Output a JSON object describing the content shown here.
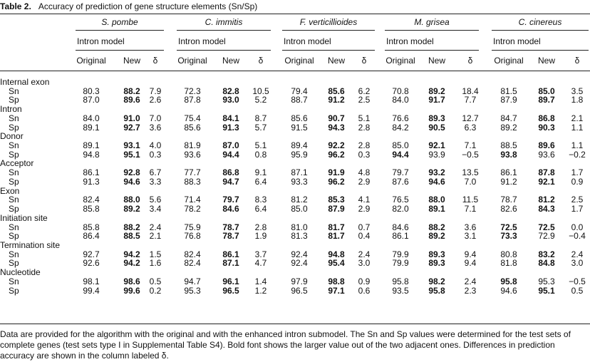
{
  "table": {
    "label": "Table 2.",
    "title": "Accuracy of prediction of gene structure elements (Sn/Sp)",
    "species": [
      "S. pombe",
      "C. immitis",
      "F. verticillioides",
      "M. grisea",
      "C. cinereus"
    ],
    "submodel": [
      "Intron model",
      "Intron model",
      "Intron model",
      "Intron model",
      "Intron model"
    ],
    "columns": [
      "Original",
      "New",
      "δ",
      "Original",
      "New",
      "δ",
      "Original",
      "New",
      "δ",
      "Original",
      "New",
      "δ",
      "Original",
      "New",
      "δ"
    ],
    "groups": [
      {
        "label": "Internal exon",
        "rows": [
          {
            "label": "Sn",
            "cells": [
              "80.3",
              "88.2",
              "7.9",
              "72.3",
              "82.8",
              "10.5",
              "79.4",
              "85.6",
              "6.2",
              "70.8",
              "89.2",
              "18.4",
              "81.5",
              "85.0",
              "3.5"
            ],
            "bold": [
              1,
              4,
              7,
              10,
              13
            ]
          },
          {
            "label": "Sp",
            "cells": [
              "87.0",
              "89.6",
              "2.6",
              "87.8",
              "93.0",
              "5.2",
              "88.7",
              "91.2",
              "2.5",
              "84.0",
              "91.7",
              "7.7",
              "87.9",
              "89.7",
              "1.8"
            ],
            "bold": [
              1,
              4,
              7,
              10,
              13
            ]
          }
        ]
      },
      {
        "label": "Intron",
        "rows": [
          {
            "label": "Sn",
            "cells": [
              "84.0",
              "91.0",
              "7.0",
              "75.4",
              "84.1",
              "8.7",
              "85.6",
              "90.7",
              "5.1",
              "76.6",
              "89.3",
              "12.7",
              "84.7",
              "86.8",
              "2.1"
            ],
            "bold": [
              1,
              4,
              7,
              10,
              13
            ]
          },
          {
            "label": "Sp",
            "cells": [
              "89.1",
              "92.7",
              "3.6",
              "85.6",
              "91.3",
              "5.7",
              "91.5",
              "94.3",
              "2.8",
              "84.2",
              "90.5",
              "6.3",
              "89.2",
              "90.3",
              "1.1"
            ],
            "bold": [
              1,
              4,
              7,
              10,
              13
            ]
          }
        ]
      },
      {
        "label": "Donor",
        "rows": [
          {
            "label": "Sn",
            "cells": [
              "89.1",
              "93.1",
              "4.0",
              "81.9",
              "87.0",
              "5.1",
              "89.4",
              "92.2",
              "2.8",
              "85.0",
              "92.1",
              "7.1",
              "88.5",
              "89.6",
              "1.1"
            ],
            "bold": [
              1,
              4,
              7,
              10,
              13
            ]
          },
          {
            "label": "Sp",
            "cells": [
              "94.8",
              "95.1",
              "0.3",
              "93.6",
              "94.4",
              "0.8",
              "95.9",
              "96.2",
              "0.3",
              "94.4",
              "93.9",
              "−0.5",
              "93.8",
              "93.6",
              "−0.2"
            ],
            "bold": [
              1,
              4,
              7,
              9,
              12
            ]
          }
        ]
      },
      {
        "label": "Acceptor",
        "rows": [
          {
            "label": "Sn",
            "cells": [
              "86.1",
              "92.8",
              "6.7",
              "77.7",
              "86.8",
              "9.1",
              "87.1",
              "91.9",
              "4.8",
              "79.7",
              "93.2",
              "13.5",
              "86.1",
              "87.8",
              "1.7"
            ],
            "bold": [
              1,
              4,
              7,
              10,
              13
            ]
          },
          {
            "label": "Sp",
            "cells": [
              "91.3",
              "94.6",
              "3.3",
              "88.3",
              "94.7",
              "6.4",
              "93.3",
              "96.2",
              "2.9",
              "87.6",
              "94.6",
              "7.0",
              "91.2",
              "92.1",
              "0.9"
            ],
            "bold": [
              1,
              4,
              7,
              10,
              13
            ]
          }
        ]
      },
      {
        "label": "Exon",
        "rows": [
          {
            "label": "Sn",
            "cells": [
              "82.4",
              "88.0",
              "5.6",
              "71.4",
              "79.7",
              "8.3",
              "81.2",
              "85.3",
              "4.1",
              "76.5",
              "88.0",
              "11.5",
              "78.7",
              "81.2",
              "2.5"
            ],
            "bold": [
              1,
              4,
              7,
              10,
              13
            ]
          },
          {
            "label": "Sp",
            "cells": [
              "85.8",
              "89.2",
              "3.4",
              "78.2",
              "84.6",
              "6.4",
              "85.0",
              "87.9",
              "2.9",
              "82.0",
              "89.1",
              "7.1",
              "82.6",
              "84.3",
              "1.7"
            ],
            "bold": [
              1,
              4,
              7,
              10,
              13
            ]
          }
        ]
      },
      {
        "label": "Initiation site",
        "rows": [
          {
            "label": "Sn",
            "cells": [
              "85.8",
              "88.2",
              "2.4",
              "75.9",
              "78.7",
              "2.8",
              "81.0",
              "81.7",
              "0.7",
              "84.6",
              "88.2",
              "3.6",
              "72.5",
              "72.5",
              "0.0"
            ],
            "bold": [
              1,
              4,
              7,
              10,
              12,
              13
            ]
          },
          {
            "label": "Sp",
            "cells": [
              "86.4",
              "88.5",
              "2.1",
              "76.8",
              "78.7",
              "1.9",
              "81.3",
              "81.7",
              "0.4",
              "86.1",
              "89.2",
              "3.1",
              "73.3",
              "72.9",
              "−0.4"
            ],
            "bold": [
              1,
              4,
              7,
              10,
              12
            ]
          }
        ]
      },
      {
        "label": "Termination site",
        "rows": [
          {
            "label": "Sn",
            "cells": [
              "92.7",
              "94.2",
              "1.5",
              "82.4",
              "86.1",
              "3.7",
              "92.4",
              "94.8",
              "2.4",
              "79.9",
              "89.3",
              "9.4",
              "80.8",
              "83.2",
              "2.4"
            ],
            "bold": [
              1,
              4,
              7,
              10,
              13
            ]
          },
          {
            "label": "Sp",
            "cells": [
              "92.6",
              "94.2",
              "1.6",
              "82.4",
              "87.1",
              "4.7",
              "92.4",
              "95.4",
              "3.0",
              "79.9",
              "89.3",
              "9.4",
              "81.8",
              "84.8",
              "3.0"
            ],
            "bold": [
              1,
              4,
              7,
              10,
              13
            ]
          }
        ]
      },
      {
        "label": "Nucleotide",
        "rows": [
          {
            "label": "Sn",
            "cells": [
              "98.1",
              "98.6",
              "0.5",
              "94.7",
              "96.1",
              "1.4",
              "97.9",
              "98.8",
              "0.9",
              "95.8",
              "98.2",
              "2.4",
              "95.8",
              "95.3",
              "−0.5"
            ],
            "bold": [
              1,
              4,
              7,
              10,
              12
            ]
          },
          {
            "label": "Sp",
            "cells": [
              "99.4",
              "99.6",
              "0.2",
              "95.3",
              "96.5",
              "1.2",
              "96.5",
              "97.1",
              "0.6",
              "93.5",
              "95.8",
              "2.3",
              "94.6",
              "95.1",
              "0.5"
            ],
            "bold": [
              1,
              4,
              7,
              10,
              13
            ]
          }
        ]
      }
    ],
    "footnote": "Data are provided for the algorithm with the original and with the enhanced intron submodel. The Sn and Sp values were determined for the test sets of complete genes (test sets type I in Supplemental Table S4). Bold font shows the larger value out of the two adjacent ones. Differences in prediction accuracy are shown in the column labeled δ."
  }
}
